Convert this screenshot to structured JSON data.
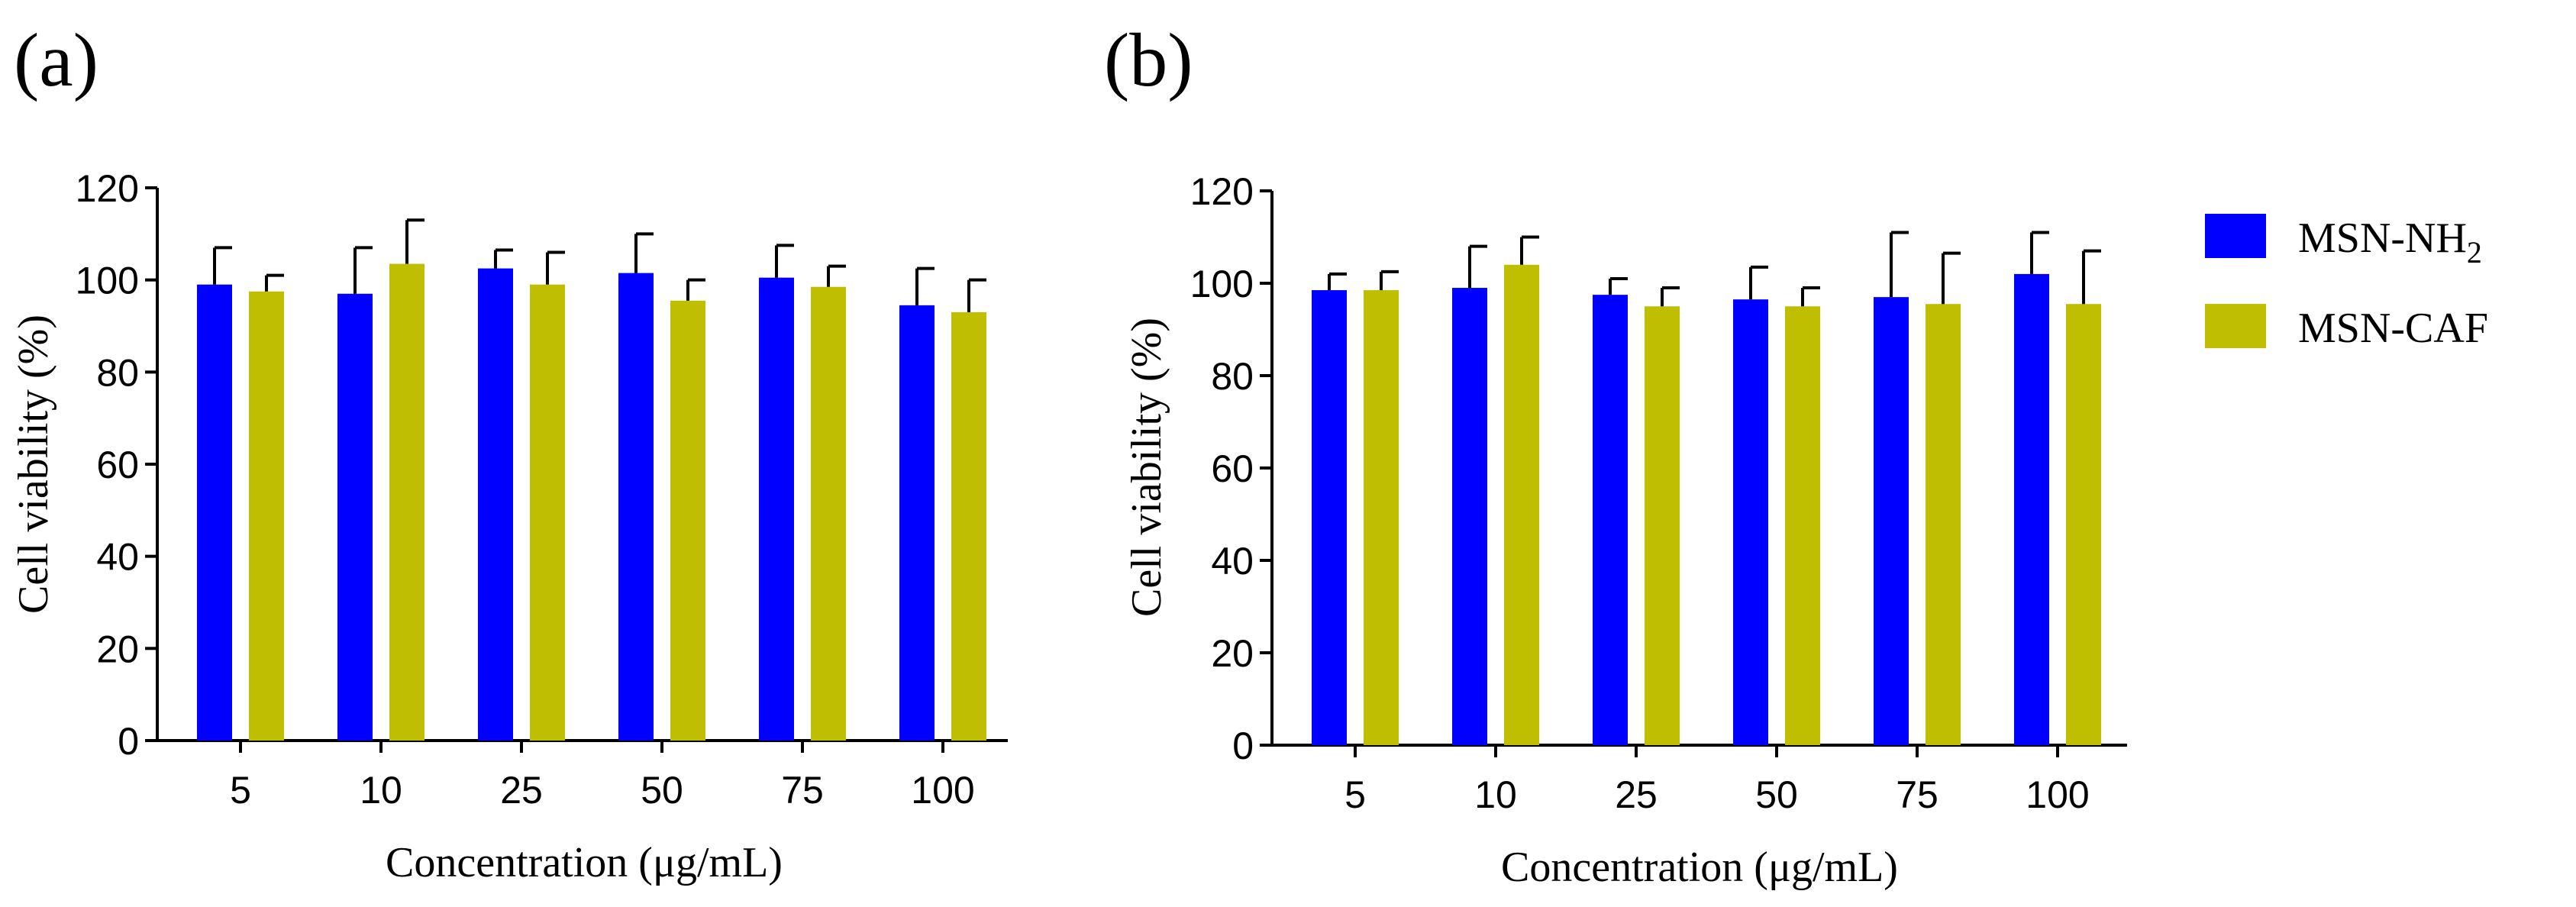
{
  "panel_labels": [
    "(a)",
    "(b)"
  ],
  "legend": {
    "items": [
      {
        "name": "MSN-NH",
        "subscript": "2",
        "color": "#0000ff"
      },
      {
        "name": "MSN-CAF",
        "subscript": "",
        "color": "#c0be00"
      }
    ]
  },
  "chart_data": [
    {
      "type": "bar",
      "panel": "(a)",
      "title": "",
      "categories": [
        "5",
        "10",
        "25",
        "50",
        "75",
        "100"
      ],
      "xlabel": "Concentration (μg/mL)",
      "ylabel": "Cell viability (%)",
      "ylim": [
        0,
        120
      ],
      "yticks": [
        "0",
        "20",
        "40",
        "60",
        "80",
        "100",
        "120"
      ],
      "series": [
        {
          "name": "MSN-NH2",
          "color": "#0000ff",
          "values": [
            99,
            97,
            102.5,
            101.5,
            100.5,
            94.5
          ],
          "errors": [
            8,
            10,
            4,
            8.5,
            7,
            8
          ]
        },
        {
          "name": "MSN-CAF",
          "color": "#c0be00",
          "values": [
            97.5,
            103.5,
            99,
            95.5,
            98.5,
            93
          ],
          "errors": [
            3.5,
            9.5,
            7,
            4.5,
            4.5,
            7
          ]
        }
      ]
    },
    {
      "type": "bar",
      "panel": "(b)",
      "title": "",
      "categories": [
        "5",
        "10",
        "25",
        "50",
        "75",
        "100"
      ],
      "xlabel": "Concentration (μg/mL)",
      "ylabel": "Cell viability (%)",
      "ylim": [
        0,
        120
      ],
      "yticks": [
        "0",
        "20",
        "40",
        "60",
        "80",
        "100",
        "120"
      ],
      "series": [
        {
          "name": "MSN-NH2",
          "color": "#0000ff",
          "values": [
            98.5,
            99,
            97.5,
            96.5,
            97,
            102
          ],
          "errors": [
            3.5,
            9,
            3.5,
            7,
            14,
            9
          ]
        },
        {
          "name": "MSN-CAF",
          "color": "#c0be00",
          "values": [
            98.5,
            104,
            95,
            95,
            95.5,
            95.5
          ],
          "errors": [
            4,
            6,
            4,
            4,
            11,
            11.5
          ]
        }
      ]
    }
  ]
}
